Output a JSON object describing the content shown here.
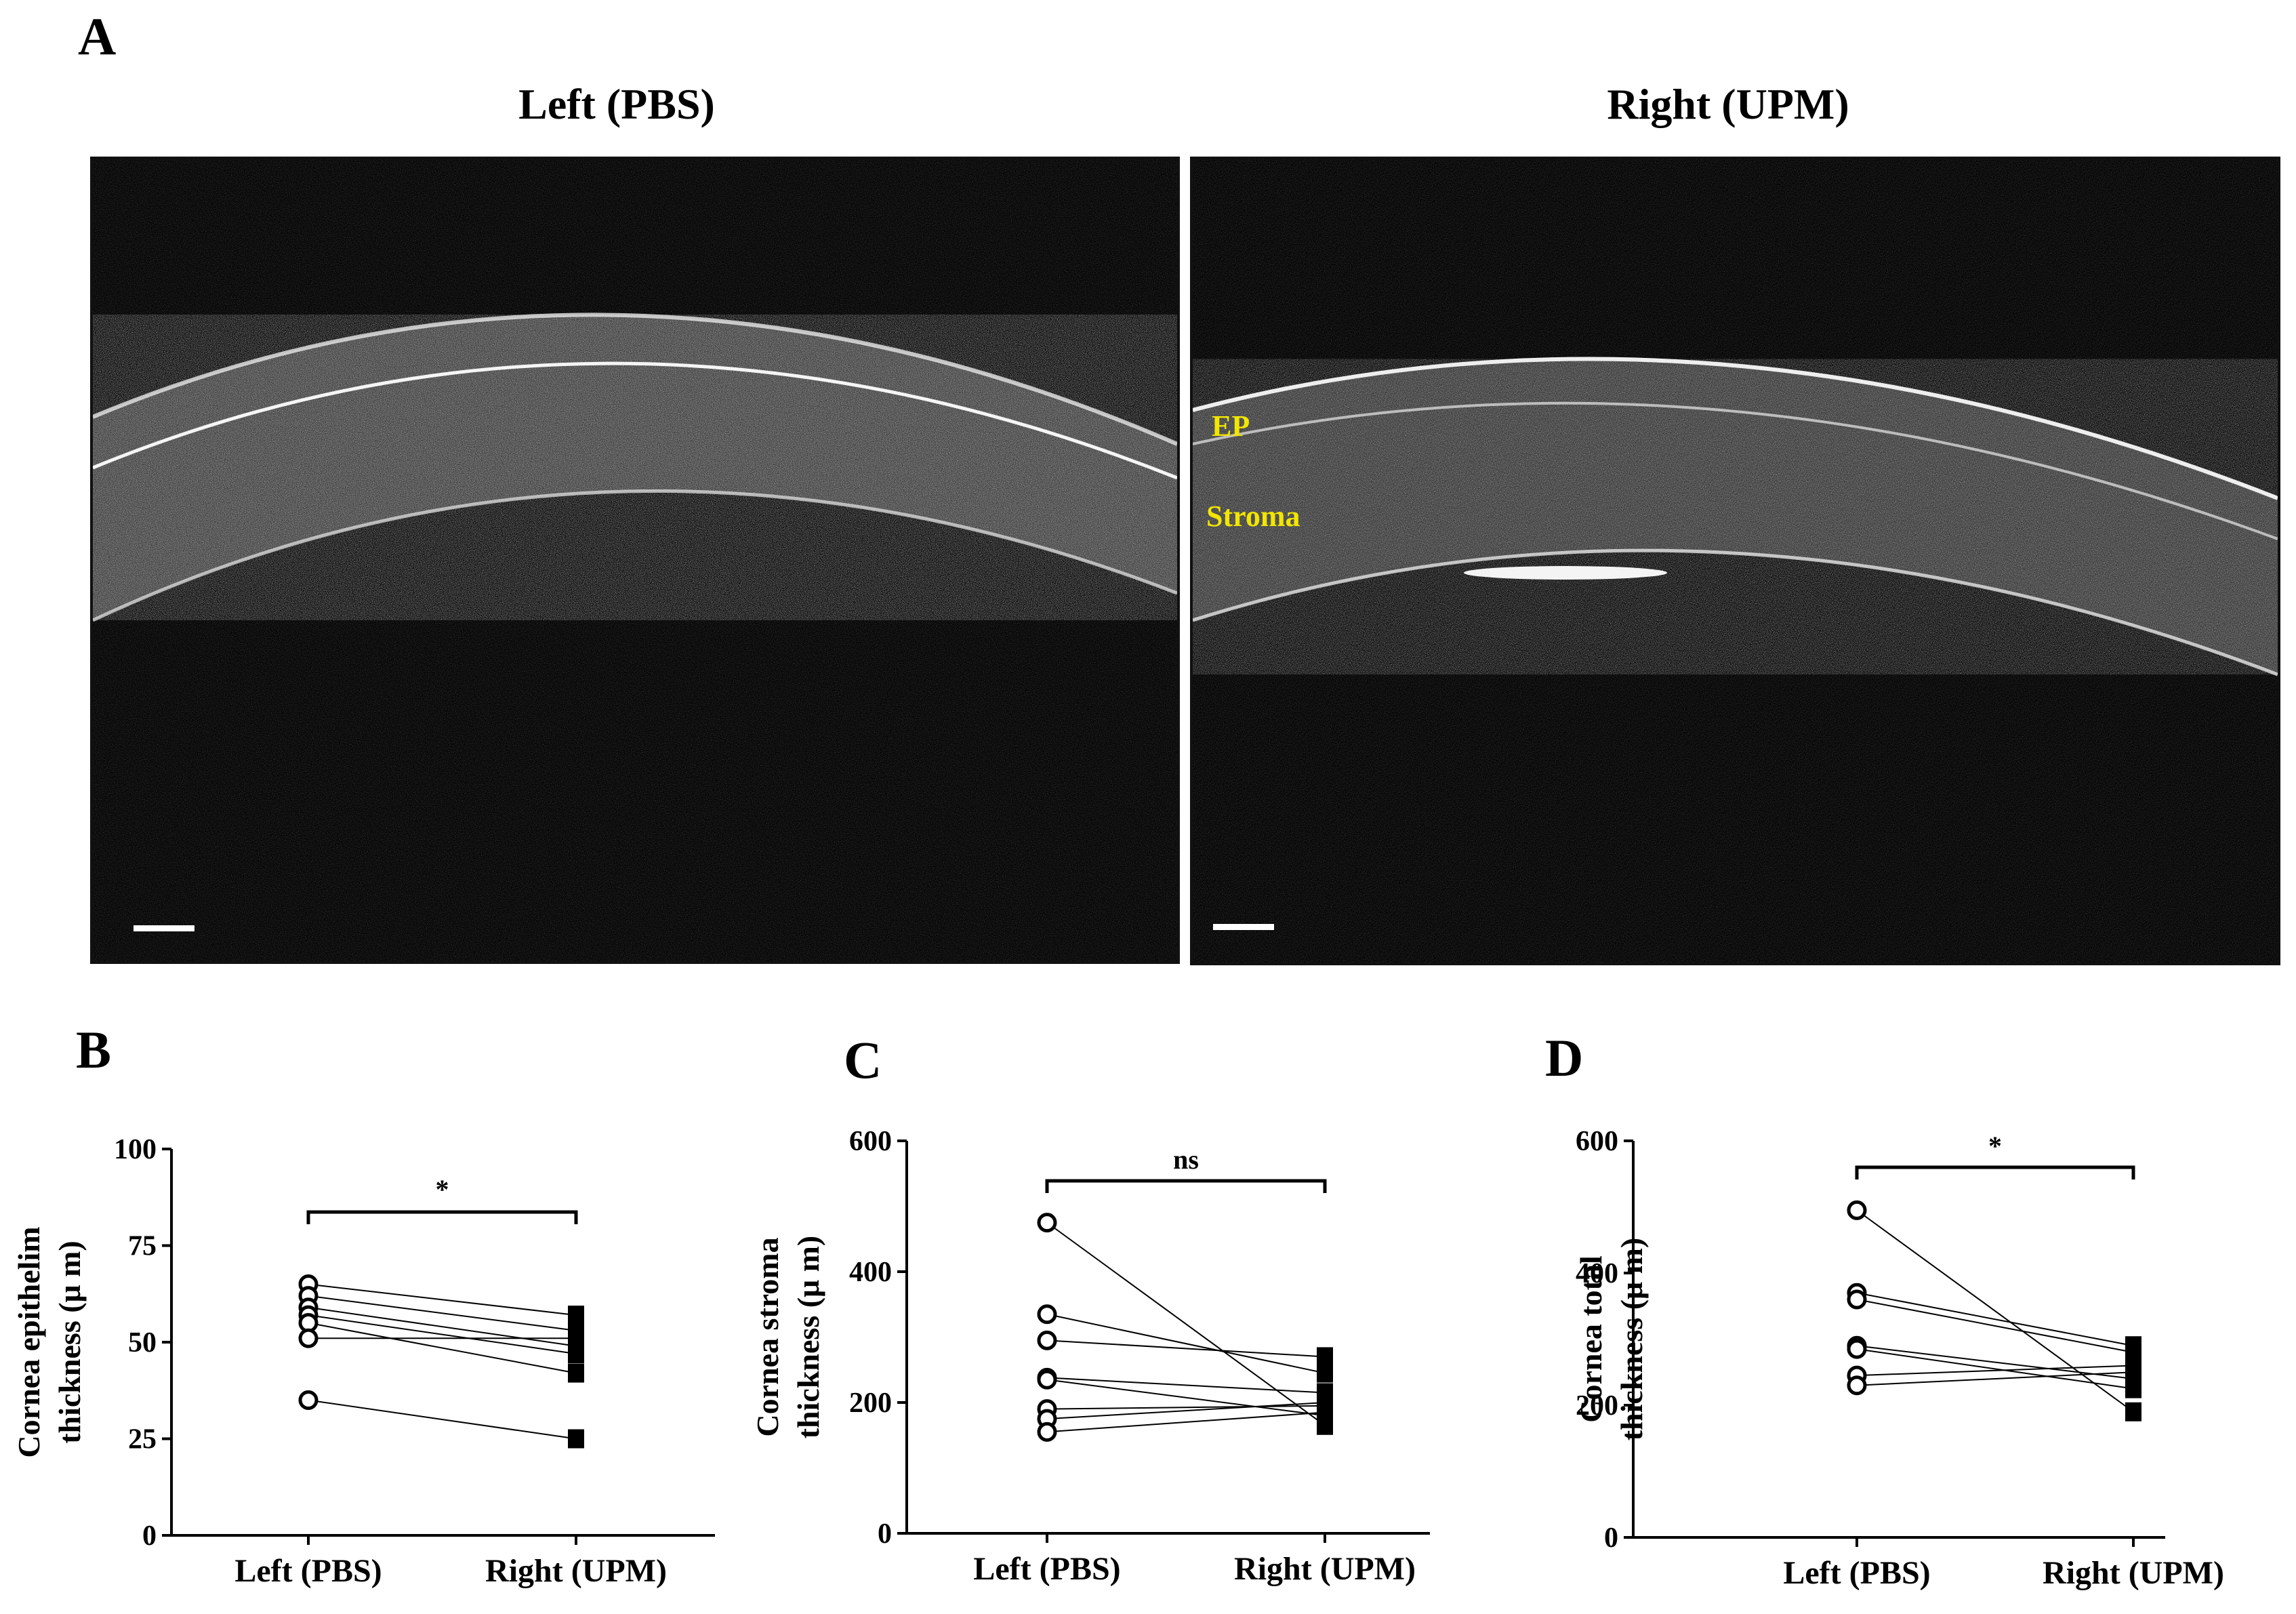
{
  "panel_a": {
    "letter": "A",
    "left_title": "Left (PBS)",
    "right_title": "Right (UPM)",
    "labels": {
      "ep": "EP",
      "stroma": "Stroma"
    }
  },
  "colors": {
    "label_yellow": "#f2e600",
    "image_background": "#050505",
    "line": "#000000"
  },
  "chart_data": [
    {
      "id": "B",
      "type": "scatter",
      "letter": "B",
      "title": "",
      "ylabel_line1": "Cornea epithelim",
      "ylabel_line2": "thickness (μ m)",
      "categories": [
        "Left (PBS)",
        "Right (UPM)"
      ],
      "ylim": [
        0,
        100
      ],
      "yticks": [
        0,
        25,
        50,
        75,
        100
      ],
      "significance": "*",
      "pairs": [
        [
          65,
          57
        ],
        [
          62,
          53
        ],
        [
          59,
          49
        ],
        [
          57,
          47
        ],
        [
          55,
          42
        ],
        [
          51,
          51
        ],
        [
          35,
          25
        ]
      ]
    },
    {
      "id": "C",
      "type": "scatter",
      "letter": "C",
      "title": "",
      "ylabel_line1": "Cornea stroma",
      "ylabel_line2": "thickness (μ m)",
      "categories": [
        "Left (PBS)",
        "Right (UPM)"
      ],
      "ylim": [
        0,
        600
      ],
      "yticks": [
        0,
        200,
        400,
        600
      ],
      "significance": "ns",
      "pairs": [
        [
          475,
          165
        ],
        [
          335,
          245
        ],
        [
          295,
          270
        ],
        [
          238,
          215
        ],
        [
          235,
          180
        ],
        [
          190,
          195
        ],
        [
          175,
          200
        ],
        [
          155,
          185
        ]
      ]
    },
    {
      "id": "D",
      "type": "scatter",
      "letter": "D",
      "title": "",
      "ylabel_line1": "Cornea total",
      "ylabel_line2": "thickness (μ m)",
      "categories": [
        "Left (PBS)",
        "Right (UPM)"
      ],
      "ylim": [
        0,
        600
      ],
      "yticks": [
        0,
        200,
        400,
        600
      ],
      "significance": "*",
      "pairs": [
        [
          495,
          190
        ],
        [
          370,
          290
        ],
        [
          360,
          280
        ],
        [
          290,
          240
        ],
        [
          285,
          225
        ],
        [
          245,
          260
        ],
        [
          230,
          250
        ]
      ]
    }
  ]
}
